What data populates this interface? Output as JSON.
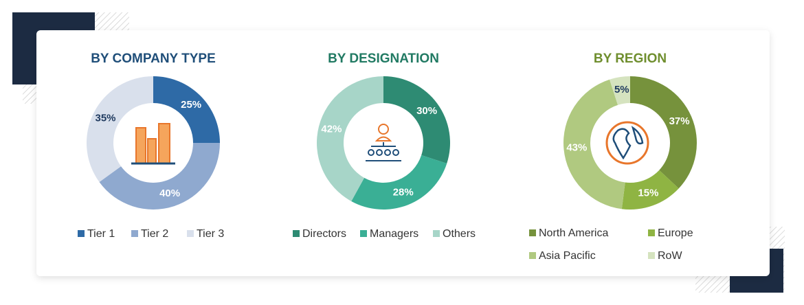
{
  "chart_data": [
    {
      "type": "pie",
      "title": "BY COMPANY TYPE",
      "title_color": "#1f4e79",
      "categories": [
        "Tier 1",
        "Tier 2",
        "Tier 3"
      ],
      "values": [
        25,
        40,
        35
      ],
      "value_labels": [
        "25%",
        "40%",
        "35%"
      ],
      "colors": [
        "#2e6aa6",
        "#8fa9cf",
        "#d9e0ec"
      ]
    },
    {
      "type": "pie",
      "title": "BY DESIGNATION",
      "title_color": "#217a63",
      "categories": [
        "Directors",
        "Managers",
        "Others"
      ],
      "values": [
        30,
        28,
        42
      ],
      "value_labels": [
        "30%",
        "28%",
        "42%"
      ],
      "colors": [
        "#2e8b73",
        "#3aaf95",
        "#a7d5c8"
      ]
    },
    {
      "type": "pie",
      "title": "BY REGION",
      "title_color": "#6f8e2e",
      "categories": [
        "North America",
        "Europe",
        "Asia Pacific",
        "RoW"
      ],
      "values": [
        37,
        15,
        43,
        5
      ],
      "value_labels": [
        "37%",
        "15%",
        "43%",
        "5%"
      ],
      "colors": [
        "#76923c",
        "#8fb443",
        "#b0c980",
        "#d5e3bf"
      ]
    }
  ]
}
